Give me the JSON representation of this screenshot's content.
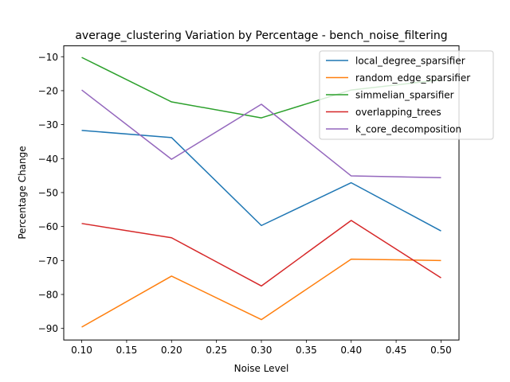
{
  "chart_data": {
    "type": "line",
    "title": "average_clustering Variation by Percentage - bench_noise_filtering",
    "xlabel": "Noise Level",
    "ylabel": "Percentage Change",
    "x": [
      0.1,
      0.2,
      0.3,
      0.4,
      0.5
    ],
    "xticks": [
      "0.10",
      "0.15",
      "0.20",
      "0.25",
      "0.30",
      "0.35",
      "0.40",
      "0.45",
      "0.50"
    ],
    "yticks": [
      "−90",
      "−80",
      "−70",
      "−60",
      "−50",
      "−40",
      "−30",
      "−20",
      "−10"
    ],
    "xlim": [
      0.08,
      0.52
    ],
    "ylim": [
      -93.4,
      -6.8
    ],
    "grid": false,
    "legend_position": "top-right",
    "series": [
      {
        "name": "local_degree_sparsifier",
        "color": "#1f77b4",
        "values": [
          -31.7,
          -33.8,
          -59.7,
          -47.1,
          -61.3
        ]
      },
      {
        "name": "random_edge_sparsifier",
        "color": "#ff7f0e",
        "values": [
          -89.6,
          -74.6,
          -87.4,
          -69.6,
          -70.0
        ]
      },
      {
        "name": "simmelian_sparsifier",
        "color": "#2ca02c",
        "values": [
          -10.2,
          -23.3,
          -28.0,
          -19.8,
          -16.8
        ]
      },
      {
        "name": "overlapping_trees",
        "color": "#d62728",
        "values": [
          -59.1,
          -63.3,
          -77.5,
          -58.2,
          -75.1
        ]
      },
      {
        "name": "k_core_decomposition",
        "color": "#9467bd",
        "values": [
          -19.8,
          -40.2,
          -24.0,
          -45.1,
          -45.6
        ]
      }
    ]
  }
}
